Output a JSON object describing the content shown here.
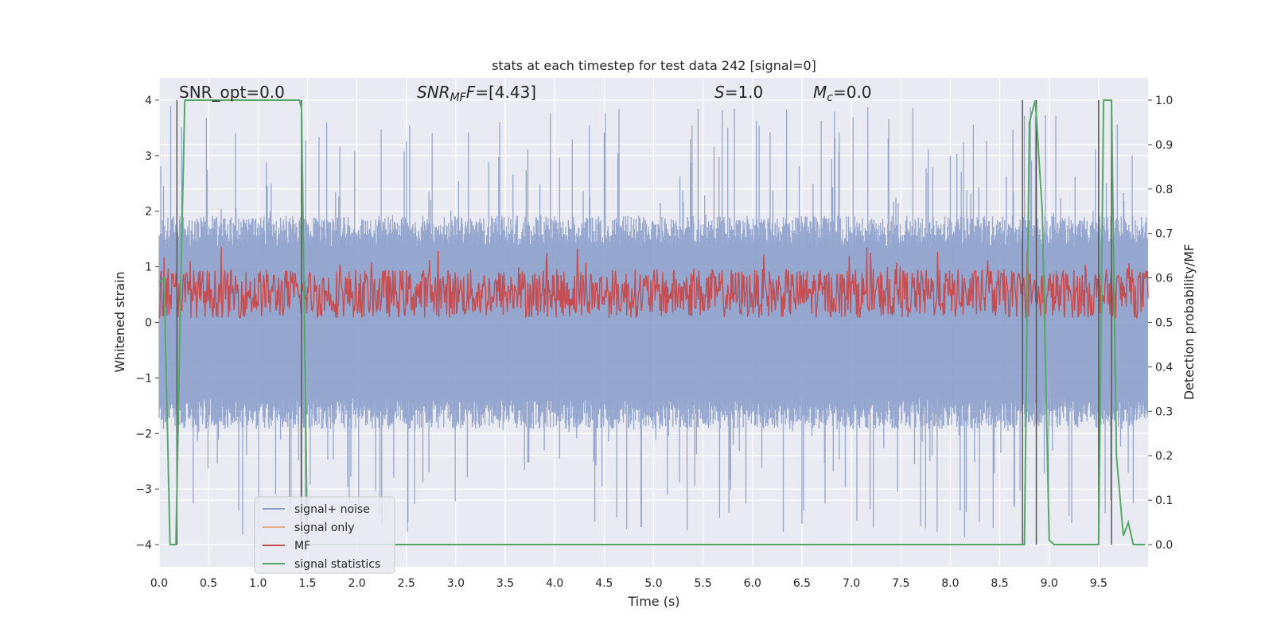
{
  "chart_data": {
    "type": "line",
    "title": "stats at each timestep for test data 242 [signal=0]",
    "xlabel": "Time (s)",
    "ylabel_left": "Whitened strain",
    "ylabel_right": "Detection probability/MF",
    "xlim": [
      0,
      10
    ],
    "ylim_left": [
      -4.4,
      4.4
    ],
    "ylim_right": [
      -0.05,
      1.05
    ],
    "x_ticks": [
      "0.0",
      "0.5",
      "1.0",
      "1.5",
      "2.0",
      "2.5",
      "3.0",
      "3.5",
      "4.0",
      "4.5",
      "5.0",
      "5.5",
      "6.0",
      "6.5",
      "7.0",
      "7.5",
      "8.0",
      "8.5",
      "9.0",
      "9.5"
    ],
    "y_left_ticks": [
      "−4",
      "−3",
      "−2",
      "−1",
      "0",
      "1",
      "2",
      "3",
      "4"
    ],
    "y_right_ticks": [
      "0.0",
      "0.1",
      "0.2",
      "0.3",
      "0.4",
      "0.5",
      "0.6",
      "0.7",
      "0.8",
      "0.9",
      "1.0"
    ],
    "annotations": {
      "snr_opt": "SNR_opt=0.0",
      "snr_mf_sym": "SNR",
      "snr_mf_sub": "MF",
      "snr_mf_val": "=[4.43]",
      "s_sym": "S",
      "s_val": "=1.0",
      "mc_sym": "M",
      "mc_sub": "c",
      "mc_val": "=0.0"
    },
    "grid": true,
    "legend_position": "lower-left",
    "series": [
      {
        "name": "signal+ noise",
        "color": "#8da0cb",
        "style": "dense noise, amplitude ~ ±2 with peaks to ±3.5, x from 0 to 10 s",
        "noise_envelope": {
          "typical": 1.6,
          "peak": 3.6
        }
      },
      {
        "name": "signal only",
        "color": "#e8a98d",
        "values": []
      },
      {
        "name": "MF",
        "color": "#c44e52",
        "style": "noisy band on right axis ~0.5 to 0.63",
        "baseline": 0.5,
        "typical_max": 0.62,
        "peak_max": 0.67
      },
      {
        "name": "signal statistics",
        "color": "#55a868",
        "x": [
          0.0,
          0.05,
          0.11,
          0.17,
          0.22,
          0.26,
          0.3,
          1.42,
          1.44,
          1.5,
          2.0,
          8.75,
          8.8,
          8.86,
          8.93,
          9.0,
          9.05,
          9.1,
          9.5,
          9.55,
          9.6,
          9.63,
          9.68,
          9.75,
          9.8,
          9.85,
          9.9,
          9.97
        ],
        "y": [
          0.59,
          0.6,
          0.0,
          0.0,
          0.6,
          1.0,
          1.0,
          1.0,
          0.98,
          0.0,
          0.0,
          0.0,
          0.95,
          1.0,
          0.75,
          0.01,
          0.0,
          0.0,
          0.0,
          1.0,
          1.0,
          1.0,
          0.2,
          0.02,
          0.05,
          0.0,
          0.0,
          0.0
        ]
      }
    ],
    "vertical_lines_x": [
      0.18,
      1.44,
      8.73,
      8.87,
      9.5,
      9.63
    ],
    "vertical_line_color": "#555555"
  }
}
